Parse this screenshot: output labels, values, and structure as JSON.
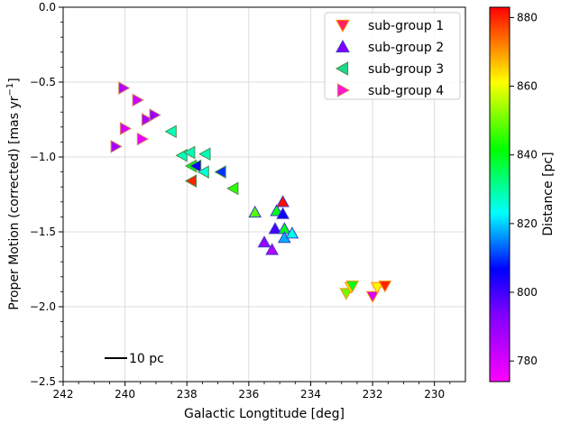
{
  "chart_data": {
    "type": "scatter",
    "xlabel": "Galactic Longtitude [deg]",
    "ylabel": "Proper Motion (corrected) [mas yr",
    "ylabel_sup": "−1",
    "ylabel_end": "]",
    "xlim": [
      242,
      229
    ],
    "ylim": [
      -2.5,
      0.0
    ],
    "xticks": [
      242,
      240,
      238,
      236,
      234,
      232,
      230
    ],
    "yticks": [
      0.0,
      -0.5,
      -1.0,
      -1.5,
      -2.0,
      -2.5
    ],
    "grid": true,
    "legend_position": "top-right",
    "colorbar": {
      "label": "Distance [pc]",
      "range": [
        774,
        883
      ],
      "ticks": [
        780,
        800,
        820,
        840,
        860,
        880
      ]
    },
    "scalebar_label": "10 pc",
    "series": [
      {
        "name": "sub-group 1",
        "marker": "triangle-down",
        "edge_color": "#ff8c00",
        "points": [
          {
            "x": 232.85,
            "y": -1.91,
            "d": 850
          },
          {
            "x": 232.7,
            "y": -1.87,
            "d": 860
          },
          {
            "x": 232.65,
            "y": -1.86,
            "d": 840
          },
          {
            "x": 232.0,
            "y": -1.93,
            "d": 780
          },
          {
            "x": 231.85,
            "y": -1.87,
            "d": 862
          },
          {
            "x": 231.6,
            "y": -1.86,
            "d": 880
          }
        ]
      },
      {
        "name": "sub-group 2",
        "marker": "triangle-up",
        "edge_color": "#3c3cc8",
        "points": [
          {
            "x": 235.8,
            "y": -1.37,
            "d": 848
          },
          {
            "x": 235.1,
            "y": -1.36,
            "d": 840
          },
          {
            "x": 234.9,
            "y": -1.3,
            "d": 882
          },
          {
            "x": 234.9,
            "y": -1.38,
            "d": 805
          },
          {
            "x": 235.5,
            "y": -1.57,
            "d": 790
          },
          {
            "x": 235.15,
            "y": -1.48,
            "d": 800
          },
          {
            "x": 235.25,
            "y": -1.62,
            "d": 785
          },
          {
            "x": 234.85,
            "y": -1.48,
            "d": 840
          },
          {
            "x": 234.85,
            "y": -1.54,
            "d": 818
          },
          {
            "x": 234.6,
            "y": -1.51,
            "d": 825
          }
        ]
      },
      {
        "name": "sub-group 3",
        "marker": "triangle-left",
        "edge_color": "#4b8c4b",
        "points": [
          {
            "x": 238.5,
            "y": -0.83,
            "d": 828
          },
          {
            "x": 238.15,
            "y": -0.99,
            "d": 828
          },
          {
            "x": 237.9,
            "y": -0.97,
            "d": 828
          },
          {
            "x": 237.4,
            "y": -0.98,
            "d": 828
          },
          {
            "x": 237.85,
            "y": -1.06,
            "d": 840
          },
          {
            "x": 237.7,
            "y": -1.06,
            "d": 805
          },
          {
            "x": 237.45,
            "y": -1.1,
            "d": 826
          },
          {
            "x": 236.9,
            "y": -1.1,
            "d": 810
          },
          {
            "x": 236.5,
            "y": -1.21,
            "d": 845
          },
          {
            "x": 237.85,
            "y": -1.16,
            "d": 880
          }
        ]
      },
      {
        "name": "sub-group 4",
        "marker": "triangle-right",
        "edge_color": "#d68a5c",
        "points": [
          {
            "x": 240.05,
            "y": -0.54,
            "d": 786
          },
          {
            "x": 239.6,
            "y": -0.62,
            "d": 782
          },
          {
            "x": 239.3,
            "y": -0.75,
            "d": 787
          },
          {
            "x": 239.05,
            "y": -0.72,
            "d": 790
          },
          {
            "x": 240.0,
            "y": -0.81,
            "d": 779
          },
          {
            "x": 239.45,
            "y": -0.88,
            "d": 777
          },
          {
            "x": 240.3,
            "y": -0.93,
            "d": 788
          }
        ]
      }
    ]
  }
}
